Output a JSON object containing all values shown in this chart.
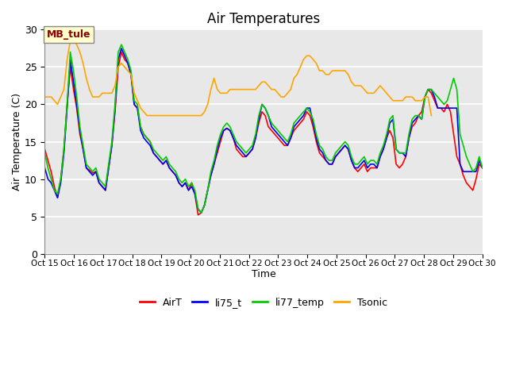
{
  "title": "Air Temperatures",
  "xlabel": "Time",
  "ylabel": "Air Temperature (C)",
  "ylim": [
    0,
    30
  ],
  "yticks": [
    0,
    5,
    10,
    15,
    20,
    25,
    30
  ],
  "x_labels": [
    "Oct 15",
    "Oct 16",
    "Oct 17",
    "Oct 18",
    "Oct 19",
    "Oct 20",
    "Oct 21",
    "Oct 22",
    "Oct 23",
    "Oct 24",
    "Oct 25",
    "Oct 26",
    "Oct 27",
    "Oct 28",
    "Oct 29",
    "Oct 30"
  ],
  "background_color": "#e8e8e8",
  "annotation_text": "MB_tule",
  "annotation_color": "#8b0000",
  "annotation_bg": "#ffffcc",
  "colors": {
    "AirT": "#ff0000",
    "li75_t": "#0000ff",
    "li77_temp": "#00cc00",
    "Tsonic": "#ffa500"
  },
  "AirT": [
    14.0,
    12.5,
    11.0,
    9.0,
    7.5,
    10.0,
    14.0,
    20.0,
    25.0,
    22.0,
    19.5,
    16.0,
    14.0,
    11.5,
    11.2,
    10.8,
    11.0,
    9.5,
    9.0,
    8.5,
    11.5,
    14.5,
    19.0,
    25.0,
    27.0,
    26.0,
    25.5,
    24.0,
    20.0,
    19.5,
    17.0,
    16.0,
    15.5,
    15.0,
    13.5,
    13.0,
    12.5,
    12.0,
    12.5,
    11.5,
    11.0,
    10.5,
    9.5,
    9.0,
    9.5,
    8.5,
    9.5,
    8.0,
    5.2,
    5.5,
    6.5,
    8.5,
    10.5,
    12.0,
    13.5,
    15.0,
    16.5,
    16.8,
    16.5,
    15.5,
    14.0,
    13.5,
    13.0,
    13.0,
    13.5,
    14.0,
    15.5,
    17.5,
    19.0,
    18.5,
    17.0,
    16.5,
    16.0,
    15.5,
    15.0,
    14.5,
    14.5,
    15.5,
    16.5,
    17.0,
    17.5,
    18.0,
    19.0,
    18.5,
    17.0,
    15.0,
    13.5,
    13.0,
    12.5,
    12.0,
    12.0,
    13.0,
    13.5,
    14.0,
    14.5,
    14.0,
    12.5,
    11.5,
    11.0,
    11.5,
    12.0,
    11.0,
    11.5,
    11.5,
    11.5,
    13.0,
    14.0,
    15.5,
    16.5,
    15.5,
    12.0,
    11.5,
    12.0,
    13.0,
    15.5,
    17.0,
    17.5,
    18.5,
    19.0,
    21.0,
    22.0,
    21.5,
    20.5,
    19.5,
    19.5,
    19.0,
    20.0,
    19.0,
    16.0,
    13.0,
    12.0,
    10.5,
    9.5,
    9.0,
    8.5,
    10.0,
    12.0,
    11.5
  ],
  "li75_t": [
    11.5,
    10.0,
    9.5,
    8.5,
    7.5,
    9.5,
    13.5,
    19.5,
    26.0,
    23.0,
    20.0,
    16.5,
    14.0,
    11.5,
    11.0,
    10.5,
    11.0,
    9.5,
    9.0,
    8.5,
    11.5,
    14.5,
    19.5,
    26.0,
    27.5,
    26.5,
    25.5,
    24.0,
    20.0,
    19.5,
    16.5,
    15.5,
    15.0,
    14.5,
    13.5,
    13.0,
    12.5,
    12.0,
    12.5,
    11.5,
    11.0,
    10.5,
    9.5,
    9.0,
    9.5,
    8.5,
    9.0,
    8.0,
    6.0,
    5.5,
    6.5,
    8.5,
    10.5,
    12.0,
    14.0,
    15.5,
    16.5,
    16.8,
    16.5,
    15.5,
    14.5,
    14.0,
    13.5,
    13.0,
    13.5,
    14.0,
    15.5,
    18.0,
    20.0,
    19.5,
    18.5,
    17.0,
    16.5,
    16.0,
    15.5,
    15.0,
    14.5,
    15.5,
    17.0,
    17.5,
    18.0,
    18.5,
    19.5,
    19.5,
    17.5,
    15.5,
    14.0,
    13.5,
    12.5,
    12.0,
    12.0,
    13.0,
    13.5,
    14.0,
    14.5,
    14.0,
    12.5,
    11.5,
    11.5,
    12.0,
    12.5,
    11.5,
    12.0,
    12.0,
    11.5,
    13.0,
    14.0,
    15.5,
    17.5,
    18.0,
    14.0,
    13.5,
    13.5,
    13.0,
    15.5,
    17.5,
    18.0,
    18.5,
    18.0,
    21.0,
    22.0,
    22.0,
    21.0,
    19.5,
    19.5,
    19.5,
    19.5,
    19.5,
    19.5,
    19.5,
    12.0,
    11.0,
    11.0,
    11.0,
    11.0,
    11.0,
    12.5,
    11.5
  ],
  "li77_temp": [
    13.5,
    11.5,
    10.0,
    8.5,
    8.0,
    10.0,
    14.0,
    20.0,
    27.0,
    24.5,
    21.0,
    17.0,
    14.5,
    12.0,
    11.5,
    11.0,
    11.5,
    10.0,
    9.5,
    9.0,
    12.0,
    15.0,
    20.0,
    27.0,
    28.0,
    27.0,
    26.0,
    24.5,
    20.5,
    20.0,
    17.0,
    16.0,
    15.5,
    15.0,
    14.0,
    13.5,
    13.0,
    12.5,
    13.0,
    12.0,
    11.5,
    11.0,
    10.0,
    9.5,
    10.0,
    9.0,
    9.5,
    8.5,
    6.0,
    5.5,
    6.5,
    8.5,
    11.0,
    12.5,
    14.5,
    16.0,
    17.0,
    17.5,
    17.0,
    16.0,
    15.0,
    14.5,
    14.0,
    13.5,
    14.0,
    14.5,
    16.0,
    18.5,
    20.0,
    19.5,
    18.5,
    17.5,
    17.0,
    16.5,
    16.0,
    15.5,
    15.0,
    16.0,
    17.5,
    18.0,
    18.5,
    19.0,
    19.5,
    19.0,
    18.0,
    16.0,
    14.5,
    14.0,
    13.0,
    12.5,
    12.5,
    13.5,
    14.0,
    14.5,
    15.0,
    14.5,
    13.0,
    12.0,
    12.0,
    12.5,
    13.0,
    12.0,
    12.5,
    12.5,
    12.0,
    13.5,
    14.5,
    16.0,
    18.0,
    18.5,
    14.0,
    13.5,
    13.5,
    13.5,
    16.0,
    18.0,
    18.5,
    18.5,
    18.0,
    21.0,
    22.0,
    22.0,
    21.5,
    21.0,
    20.5,
    20.0,
    20.5,
    22.0,
    23.5,
    22.0,
    16.0,
    14.5,
    13.0,
    12.0,
    11.0,
    11.5,
    13.0,
    11.5
  ],
  "Tsonic": [
    21.0,
    21.0,
    21.0,
    20.5,
    20.0,
    21.0,
    22.0,
    26.0,
    28.5,
    28.5,
    28.0,
    27.0,
    25.5,
    23.5,
    22.0,
    21.0,
    21.0,
    21.0,
    21.5,
    21.5,
    21.5,
    21.5,
    22.5,
    25.0,
    25.5,
    25.0,
    24.5,
    24.0,
    21.5,
    20.5,
    19.5,
    19.0,
    18.5,
    18.5,
    18.5,
    18.5,
    18.5,
    18.5,
    18.5,
    18.5,
    18.5,
    18.5,
    18.5,
    18.5,
    18.5,
    18.5,
    18.5,
    18.5,
    18.5,
    18.5,
    19.0,
    20.0,
    22.0,
    23.5,
    22.0,
    21.5,
    21.5,
    21.5,
    22.0,
    22.0,
    22.0,
    22.0,
    22.0,
    22.0,
    22.0,
    22.0,
    22.0,
    22.5,
    23.0,
    23.0,
    22.5,
    22.0,
    22.0,
    21.5,
    21.0,
    21.0,
    21.5,
    22.0,
    23.5,
    24.0,
    25.0,
    26.0,
    26.5,
    26.5,
    26.0,
    25.5,
    24.5,
    24.5,
    24.0,
    24.0,
    24.5,
    24.5,
    24.5,
    24.5,
    24.5,
    24.0,
    23.0,
    22.5,
    22.5,
    22.5,
    22.0,
    21.5,
    21.5,
    21.5,
    22.0,
    22.5,
    22.0,
    21.5,
    21.0,
    20.5,
    20.5,
    20.5,
    20.5,
    21.0,
    21.0,
    21.0,
    20.5,
    20.5,
    20.5,
    21.0,
    21.0,
    18.5,
    null,
    null,
    null,
    null,
    null,
    null,
    null,
    null,
    null,
    null,
    null,
    null,
    null,
    null,
    null,
    null,
    null
  ]
}
